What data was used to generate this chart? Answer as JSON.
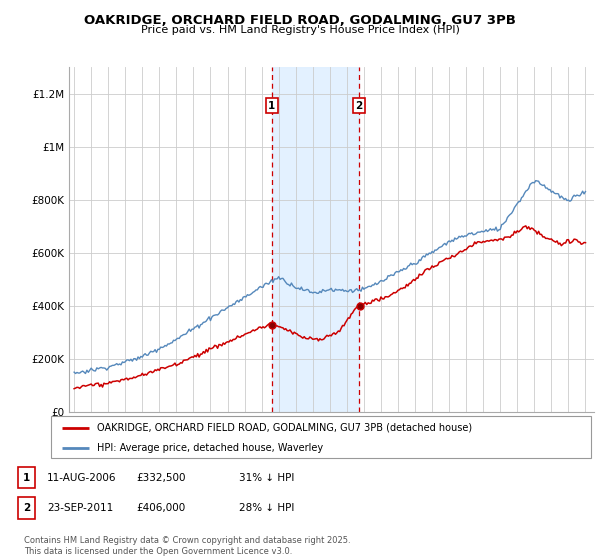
{
  "title": "OAKRIDGE, ORCHARD FIELD ROAD, GODALMING, GU7 3PB",
  "subtitle": "Price paid vs. HM Land Registry's House Price Index (HPI)",
  "ylim": [
    0,
    1300000
  ],
  "yticks": [
    0,
    200000,
    400000,
    600000,
    800000,
    1000000,
    1200000
  ],
  "ytick_labels": [
    "£0",
    "£200K",
    "£400K",
    "£600K",
    "£800K",
    "£1M",
    "£1.2M"
  ],
  "sale1_year": 2006.6,
  "sale2_year": 2011.72,
  "sale1_price": 332500,
  "sale2_price": 406000,
  "legend_red_label": "OAKRIDGE, ORCHARD FIELD ROAD, GODALMING, GU7 3PB (detached house)",
  "legend_blue_label": "HPI: Average price, detached house, Waverley",
  "table_row1": [
    "1",
    "11-AUG-2006",
    "£332,500",
    "31% ↓ HPI"
  ],
  "table_row2": [
    "2",
    "23-SEP-2011",
    "£406,000",
    "28% ↓ HPI"
  ],
  "footnote": "Contains HM Land Registry data © Crown copyright and database right 2025.\nThis data is licensed under the Open Government Licence v3.0.",
  "red_color": "#cc0000",
  "blue_color": "#5588bb",
  "shade_color": "#ddeeff",
  "grid_color": "#cccccc"
}
